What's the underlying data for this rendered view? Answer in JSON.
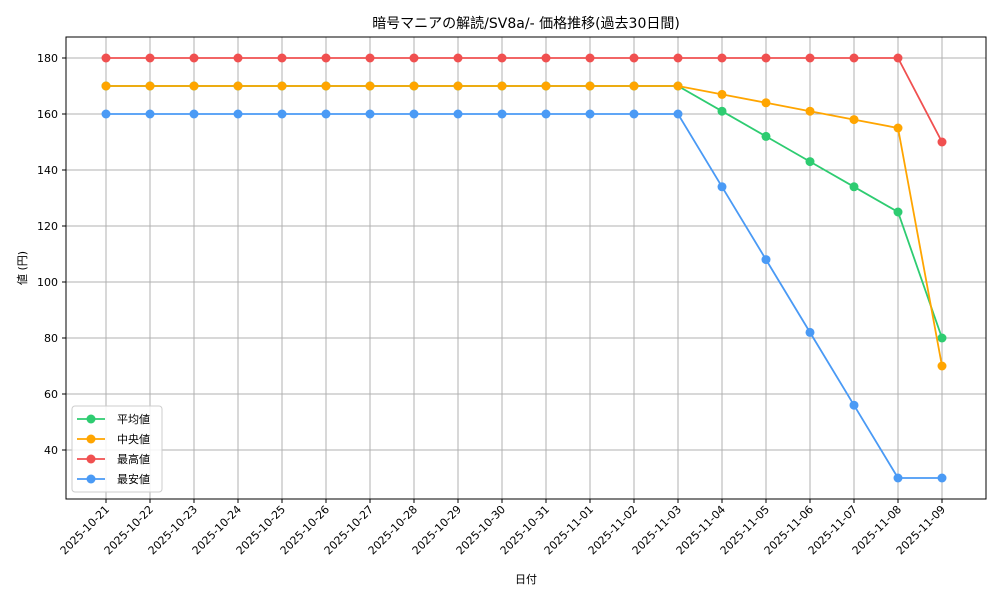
{
  "chart_data": {
    "type": "line",
    "title": "暗号マニアの解読/SV8a/- 価格推移(過去30日間)",
    "xlabel": "日付",
    "ylabel": "値 (円)",
    "ylim": [
      22,
      187
    ],
    "yticks": [
      40,
      60,
      80,
      100,
      120,
      140,
      160,
      180
    ],
    "grid": true,
    "legend_position": "lower left",
    "categories": [
      "2025-10-21",
      "2025-10-22",
      "2025-10-23",
      "2025-10-24",
      "2025-10-25",
      "2025-10-26",
      "2025-10-27",
      "2025-10-28",
      "2025-10-29",
      "2025-10-30",
      "2025-10-31",
      "2025-11-01",
      "2025-11-02",
      "2025-11-03",
      "2025-11-04",
      "2025-11-05",
      "2025-11-06",
      "2025-11-07",
      "2025-11-08",
      "2025-11-09"
    ],
    "series": [
      {
        "name": "平均値",
        "color": "#2ecc71",
        "values": [
          170,
          170,
          170,
          170,
          170,
          170,
          170,
          170,
          170,
          170,
          170,
          170,
          170,
          170,
          161,
          152,
          143,
          134,
          125,
          80
        ]
      },
      {
        "name": "中央値",
        "color": "#ffa500",
        "values": [
          170,
          170,
          170,
          170,
          170,
          170,
          170,
          170,
          170,
          170,
          170,
          170,
          170,
          170,
          167,
          164,
          161,
          158,
          155,
          70
        ]
      },
      {
        "name": "最高値",
        "color": "#f05050",
        "values": [
          180,
          180,
          180,
          180,
          180,
          180,
          180,
          180,
          180,
          180,
          180,
          180,
          180,
          180,
          180,
          180,
          180,
          180,
          180,
          150
        ]
      },
      {
        "name": "最安値",
        "color": "#4a9af5",
        "values": [
          160,
          160,
          160,
          160,
          160,
          160,
          160,
          160,
          160,
          160,
          160,
          160,
          160,
          160,
          134,
          108,
          82,
          56,
          30,
          30
        ]
      }
    ]
  }
}
